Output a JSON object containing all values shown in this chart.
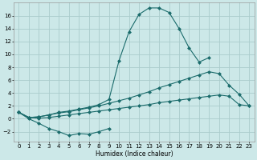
{
  "xlabel": "Humidex (Indice chaleur)",
  "background_color": "#cce8e8",
  "grid_color": "#aacccc",
  "line_color": "#1a6b6b",
  "ylim": [
    -3.5,
    18
  ],
  "xlim": [
    -0.5,
    23.5
  ],
  "yticks": [
    -2,
    0,
    2,
    4,
    6,
    8,
    10,
    12,
    14,
    16
  ],
  "xticks": [
    0,
    1,
    2,
    3,
    4,
    5,
    6,
    7,
    8,
    9,
    10,
    11,
    12,
    13,
    14,
    15,
    16,
    17,
    18,
    19,
    20,
    21,
    22,
    23
  ],
  "line_peak_x": [
    0,
    1,
    2,
    3,
    4,
    5,
    6,
    7,
    8,
    9,
    10,
    11,
    12,
    13,
    14,
    15,
    16,
    17,
    18,
    19
  ],
  "line_peak_y": [
    1.0,
    0.2,
    0.3,
    0.6,
    1.0,
    1.2,
    1.5,
    1.8,
    2.2,
    3.0,
    9.0,
    13.5,
    16.2,
    17.2,
    17.2,
    16.5,
    14.0,
    11.0,
    8.8,
    9.5
  ],
  "line_upper_x": [
    0,
    1,
    2,
    3,
    4,
    5,
    6,
    7,
    8,
    9,
    10,
    11,
    12,
    13,
    14,
    15,
    16,
    17,
    18,
    19,
    20,
    21,
    22,
    23
  ],
  "line_upper_y": [
    1.0,
    0.2,
    0.3,
    0.6,
    0.9,
    1.1,
    1.4,
    1.7,
    2.0,
    2.4,
    2.8,
    3.2,
    3.7,
    4.2,
    4.8,
    5.3,
    5.8,
    6.3,
    6.8,
    7.3,
    7.0,
    5.2,
    3.8,
    2.0
  ],
  "line_lower_x": [
    0,
    1,
    2,
    3,
    4,
    5,
    6,
    7,
    8,
    9,
    10,
    11,
    12,
    13,
    14,
    15,
    16,
    17,
    18,
    19,
    20,
    21,
    22,
    23
  ],
  "line_lower_y": [
    1.0,
    0.2,
    0.1,
    0.2,
    0.4,
    0.6,
    0.8,
    1.0,
    1.2,
    1.4,
    1.6,
    1.8,
    2.0,
    2.2,
    2.5,
    2.7,
    2.9,
    3.1,
    3.3,
    3.5,
    3.7,
    3.5,
    2.2,
    2.0
  ],
  "line_bottom_x": [
    0,
    1,
    2,
    3,
    4,
    5,
    6,
    7,
    8,
    9
  ],
  "line_bottom_y": [
    1.0,
    0.0,
    -0.7,
    -1.5,
    -2.0,
    -2.6,
    -2.3,
    -2.4,
    -2.0,
    -1.5
  ]
}
